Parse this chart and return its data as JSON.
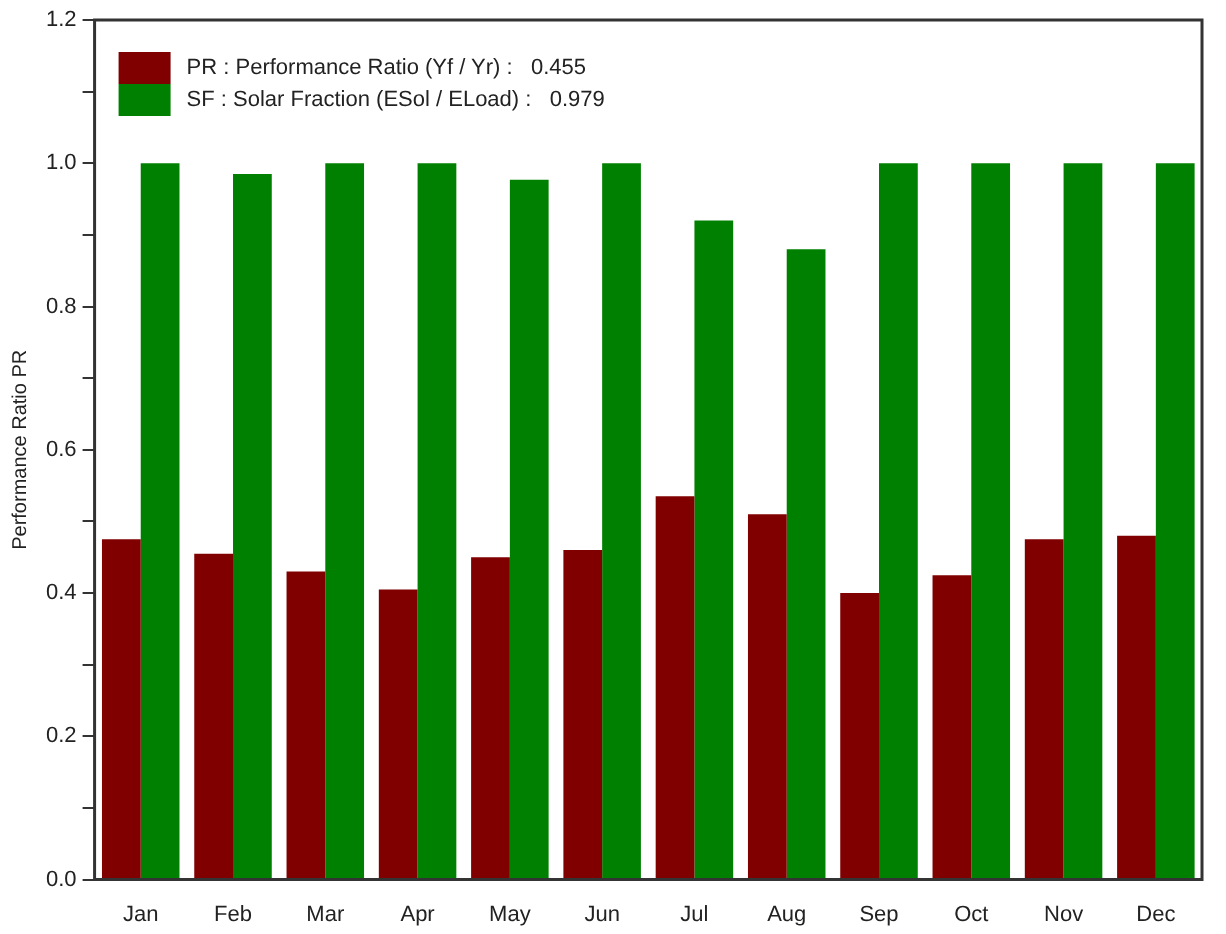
{
  "chart_data": {
    "type": "bar",
    "ylabel": "Performance Ratio PR",
    "categories": [
      "Jan",
      "Feb",
      "Mar",
      "Apr",
      "May",
      "Jun",
      "Jul",
      "Aug",
      "Sep",
      "Oct",
      "Nov",
      "Dec"
    ],
    "series": [
      {
        "name": "PR : Performance Ratio (Yf / Yr) :   0.455",
        "color": "#800000",
        "values": [
          0.475,
          0.455,
          0.43,
          0.405,
          0.45,
          0.46,
          0.535,
          0.51,
          0.4,
          0.425,
          0.475,
          0.48
        ]
      },
      {
        "name": "SF : Solar Fraction (ESol / ELoad) :   0.979",
        "color": "#008000",
        "values": [
          1.0,
          0.985,
          1.0,
          1.0,
          0.977,
          1.0,
          0.92,
          0.88,
          1.0,
          1.0,
          1.0,
          1.0
        ]
      }
    ],
    "ylim": [
      0,
      1.2
    ],
    "yticks": [
      {
        "value": 0,
        "label": "0.0"
      },
      {
        "value": 0.1,
        "label": null
      },
      {
        "value": 0.2,
        "label": "0.2"
      },
      {
        "value": 0.3,
        "label": null
      },
      {
        "value": 0.4,
        "label": "0.4"
      },
      {
        "value": 0.5,
        "label": null
      },
      {
        "value": 0.6,
        "label": "0.6"
      },
      {
        "value": 0.7,
        "label": null
      },
      {
        "value": 0.8,
        "label": "0.8"
      },
      {
        "value": 0.9,
        "label": null
      },
      {
        "value": 1,
        "label": "1.0"
      },
      {
        "value": 1.1,
        "label": null
      },
      {
        "value": 1.2,
        "label": "1.2"
      }
    ],
    "grid": false,
    "legend": "top left"
  }
}
